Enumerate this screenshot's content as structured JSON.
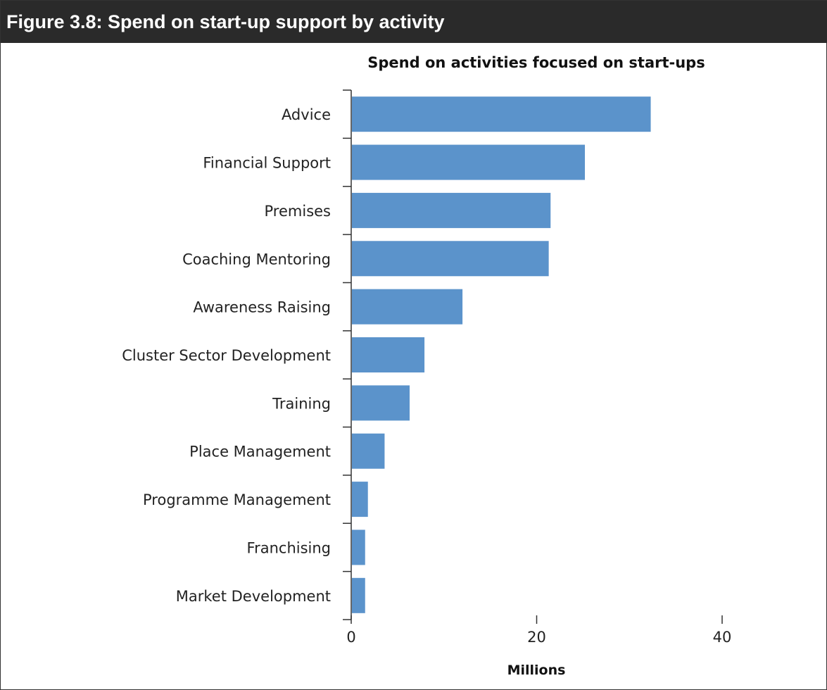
{
  "figure": {
    "heading": "Figure 3.8:  Spend on start-up support by activity"
  },
  "chart_data": {
    "type": "bar",
    "orientation": "horizontal",
    "title": "Spend on activities focused on start-ups",
    "xlabel": "Millions",
    "ylabel": "",
    "categories": [
      "Advice",
      "Financial Support",
      "Premises",
      "Coaching Mentoring",
      "Awareness Raising",
      "Cluster Sector Development",
      "Training",
      "Place Management",
      "Programme Management",
      "Franchising",
      "Market Development"
    ],
    "values": [
      32.3,
      25.2,
      21.5,
      21.3,
      12,
      7.9,
      6.3,
      3.6,
      1.8,
      1.5,
      1.5
    ],
    "xlim": [
      0,
      40
    ],
    "xticks": [
      0,
      20,
      40
    ],
    "bar_color": "#5b93cb",
    "grid": false
  }
}
